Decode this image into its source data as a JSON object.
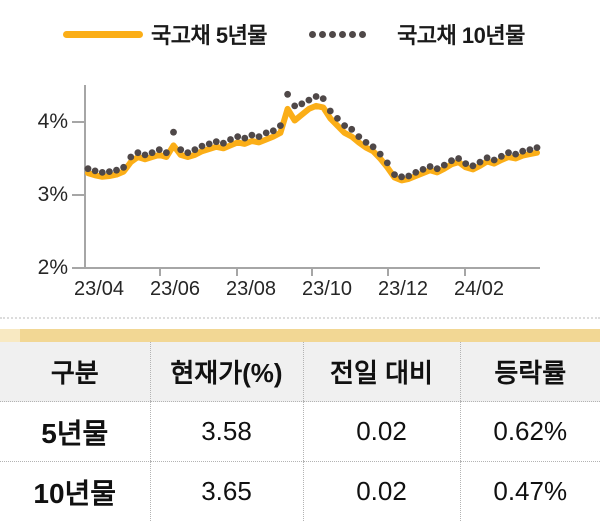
{
  "legend": {
    "series1_label": "국고채 5년물",
    "series2_label": "국고채 10년물"
  },
  "colors": {
    "line_5yr": "#FBAE17",
    "dots_10yr": "#4F4848",
    "axis": "#A6A6A6",
    "table_band": "#F2D794",
    "header_bg": "#F0F0F0"
  },
  "chart_data": {
    "type": "line",
    "title": "",
    "xlabel": "",
    "ylabel": "",
    "ylim": [
      2,
      4.5
    ],
    "grid": false,
    "legend_position": "top",
    "y_tick_labels": [
      "4%",
      "3%",
      "2%"
    ],
    "y_tick_values": [
      4,
      3,
      2
    ],
    "x_tick_labels": [
      "23/04",
      "23/06",
      "23/08",
      "23/10",
      "23/12",
      "24/02"
    ],
    "series": [
      {
        "name": "국고채 5년물",
        "style": "solid-line",
        "color": "#FBAE17",
        "values": [
          3.3,
          3.27,
          3.25,
          3.26,
          3.28,
          3.32,
          3.45,
          3.52,
          3.49,
          3.52,
          3.55,
          3.52,
          3.68,
          3.55,
          3.52,
          3.55,
          3.6,
          3.63,
          3.66,
          3.64,
          3.68,
          3.72,
          3.7,
          3.74,
          3.72,
          3.76,
          3.8,
          3.85,
          4.18,
          4.02,
          4.1,
          4.18,
          4.22,
          4.2,
          4.05,
          3.95,
          3.85,
          3.8,
          3.72,
          3.65,
          3.6,
          3.5,
          3.38,
          3.24,
          3.2,
          3.22,
          3.26,
          3.3,
          3.34,
          3.31,
          3.36,
          3.42,
          3.45,
          3.38,
          3.35,
          3.4,
          3.46,
          3.43,
          3.48,
          3.52,
          3.5,
          3.54,
          3.56,
          3.58
        ]
      },
      {
        "name": "국고채 10년물",
        "style": "dotted",
        "color": "#4F4848",
        "values": [
          3.36,
          3.33,
          3.31,
          3.32,
          3.34,
          3.38,
          3.52,
          3.58,
          3.55,
          3.58,
          3.62,
          3.58,
          3.86,
          3.62,
          3.58,
          3.62,
          3.67,
          3.7,
          3.73,
          3.71,
          3.76,
          3.8,
          3.78,
          3.82,
          3.8,
          3.85,
          3.88,
          3.95,
          4.38,
          4.22,
          4.25,
          4.3,
          4.35,
          4.32,
          4.15,
          4.05,
          3.95,
          3.9,
          3.8,
          3.72,
          3.66,
          3.56,
          3.44,
          3.28,
          3.25,
          3.26,
          3.31,
          3.35,
          3.39,
          3.36,
          3.41,
          3.47,
          3.5,
          3.43,
          3.4,
          3.45,
          3.51,
          3.48,
          3.53,
          3.58,
          3.56,
          3.6,
          3.62,
          3.65
        ]
      }
    ]
  },
  "table": {
    "headers": [
      "구분",
      "현재가(%)",
      "전일 대비",
      "등락률"
    ],
    "rows": [
      [
        "5년물",
        "3.58",
        "0.02",
        "0.62%"
      ],
      [
        "10년물",
        "3.65",
        "0.02",
        "0.47%"
      ]
    ]
  }
}
